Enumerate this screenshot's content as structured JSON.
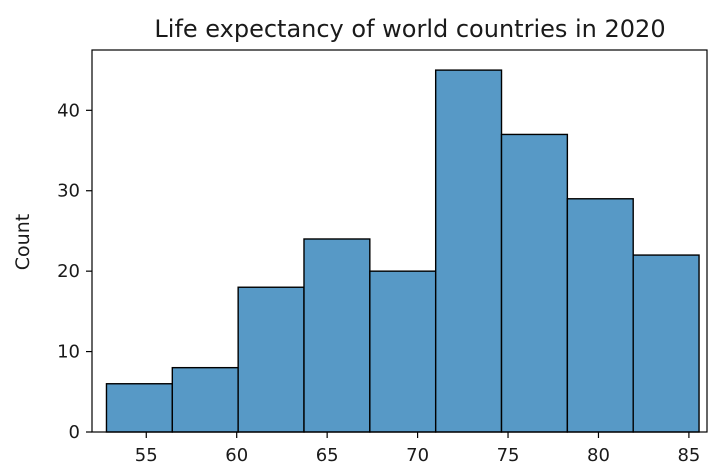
{
  "chart_data": {
    "type": "bar",
    "title": "Life expectancy of world countries in 2020",
    "xlabel": "",
    "ylabel": "Count",
    "xlim": [
      52.0,
      86.0
    ],
    "ylim": [
      0,
      47.5
    ],
    "x_ticks": [
      55,
      60,
      65,
      70,
      75,
      80,
      85
    ],
    "y_ticks": [
      0,
      10,
      20,
      30,
      40
    ],
    "bin_edges": [
      52.8,
      56.44,
      60.08,
      63.72,
      67.36,
      71.0,
      74.64,
      78.28,
      81.92,
      85.56
    ],
    "values": [
      6,
      8,
      18,
      24,
      20,
      45,
      37,
      29,
      22
    ],
    "bar_color": "#5799c6",
    "edge_color": "#000000",
    "grid": false,
    "legend": "none"
  }
}
